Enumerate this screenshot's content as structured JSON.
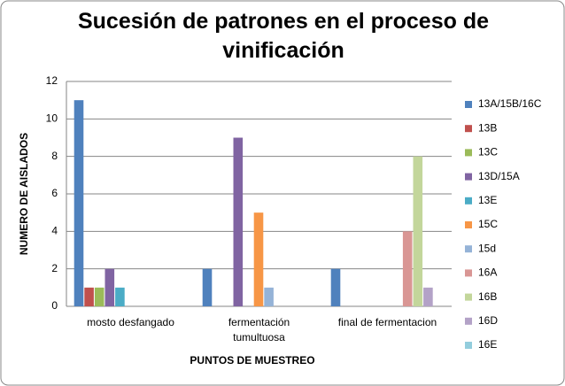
{
  "chart_data": {
    "type": "bar",
    "title": "Sucesión de patrones en el proceso de vinificación",
    "x_label": "PUNTOS DE MUESTREO",
    "y_label": "NUMERO DE AISLADOS",
    "categories": [
      "mosto desfangado",
      "fermentación tumultuosa",
      "final de fermentacion"
    ],
    "series": [
      {
        "name": "13A/15B/16C",
        "color": "#4f81bd",
        "values": [
          11,
          2,
          2
        ]
      },
      {
        "name": "13B",
        "color": "#c0504d",
        "values": [
          1,
          0,
          0
        ]
      },
      {
        "name": "13C",
        "color": "#9bbb59",
        "values": [
          1,
          0,
          0
        ]
      },
      {
        "name": "13D/15A",
        "color": "#8064a2",
        "values": [
          2,
          9,
          0
        ]
      },
      {
        "name": "13E",
        "color": "#4bacc6",
        "values": [
          1,
          0,
          0
        ]
      },
      {
        "name": "15C",
        "color": "#f79646",
        "values": [
          0,
          5,
          0
        ]
      },
      {
        "name": "15d",
        "color": "#95b3d7",
        "values": [
          0,
          1,
          0
        ]
      },
      {
        "name": "16A",
        "color": "#d99694",
        "values": [
          0,
          0,
          4
        ]
      },
      {
        "name": "16B",
        "color": "#c3d69b",
        "values": [
          0,
          0,
          8
        ]
      },
      {
        "name": "16D",
        "color": "#b3a2c7",
        "values": [
          0,
          0,
          1
        ]
      },
      {
        "name": "16E",
        "color": "#93cddd",
        "values": [
          0,
          0,
          0
        ]
      }
    ],
    "ylim": [
      0,
      12
    ],
    "yticks": [
      0,
      2,
      4,
      6,
      8,
      10,
      12
    ],
    "grid": true,
    "legend": "right"
  }
}
